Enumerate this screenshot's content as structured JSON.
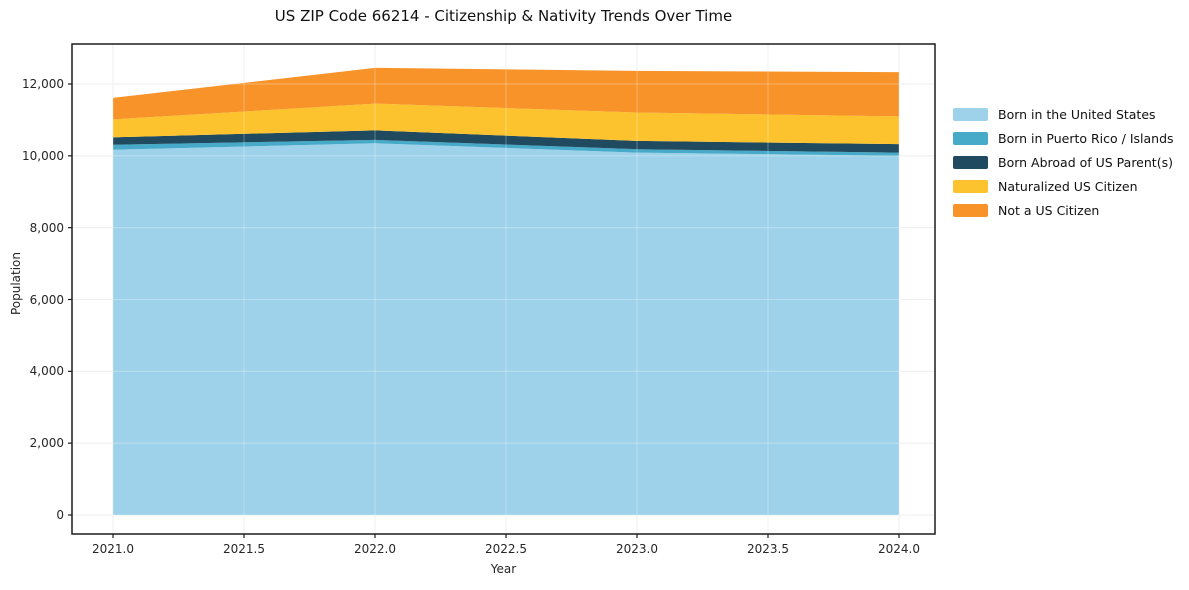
{
  "title": "US ZIP Code 66214 - Citizenship & Nativity Trends Over Time",
  "axes": {
    "x_label": "Year",
    "y_label": "Population",
    "x_tick_labels": [
      "2021.0",
      "2021.5",
      "2022.0",
      "2022.5",
      "2023.0",
      "2023.5",
      "2024.0"
    ],
    "y_tick_labels": [
      "0",
      "2,000",
      "4,000",
      "6,000",
      "8,000",
      "10,000",
      "12,000"
    ]
  },
  "colors": {
    "frame": "#1c1c1c",
    "tick_text": "#262626",
    "grid_under": "#e8e8e8",
    "grid_over": "rgba(255,255,255,0.30)"
  },
  "chart_data": {
    "type": "area",
    "stacked": true,
    "title": "US ZIP Code 66214 - Citizenship & Nativity Trends Over Time",
    "xlabel": "Year",
    "ylabel": "Population",
    "x": [
      2021,
      2022,
      2023,
      2024
    ],
    "series": [
      {
        "name": "Born in the United States",
        "color": "#9ed2ea",
        "values": [
          10170,
          10350,
          10090,
          10000
        ]
      },
      {
        "name": "Born in Puerto Rico / Islands",
        "color": "#46aac8",
        "values": [
          140,
          95,
          95,
          90
        ]
      },
      {
        "name": "Born Abroad of US Parent(s)",
        "color": "#1f4a5f",
        "values": [
          205,
          265,
          230,
          235
        ]
      },
      {
        "name": "Naturalized US Citizen",
        "color": "#fcc32e",
        "values": [
          500,
          745,
          790,
          775
        ]
      },
      {
        "name": "Not a US Citizen",
        "color": "#f79329",
        "values": [
          600,
          995,
          1160,
          1230
        ]
      }
    ],
    "stack_totals": [
      11615,
      12450,
      12365,
      12330
    ],
    "x_tick_values": [
      2021.0,
      2021.5,
      2022.0,
      2022.5,
      2023.0,
      2023.5,
      2024.0
    ],
    "y_tick_values": [
      0,
      2000,
      4000,
      6000,
      8000,
      10000,
      12000
    ],
    "xlim": [
      2020.84,
      2024.14
    ],
    "ylim": [
      -530,
      13120
    ],
    "grid": true,
    "legend_position": "right-outside"
  }
}
